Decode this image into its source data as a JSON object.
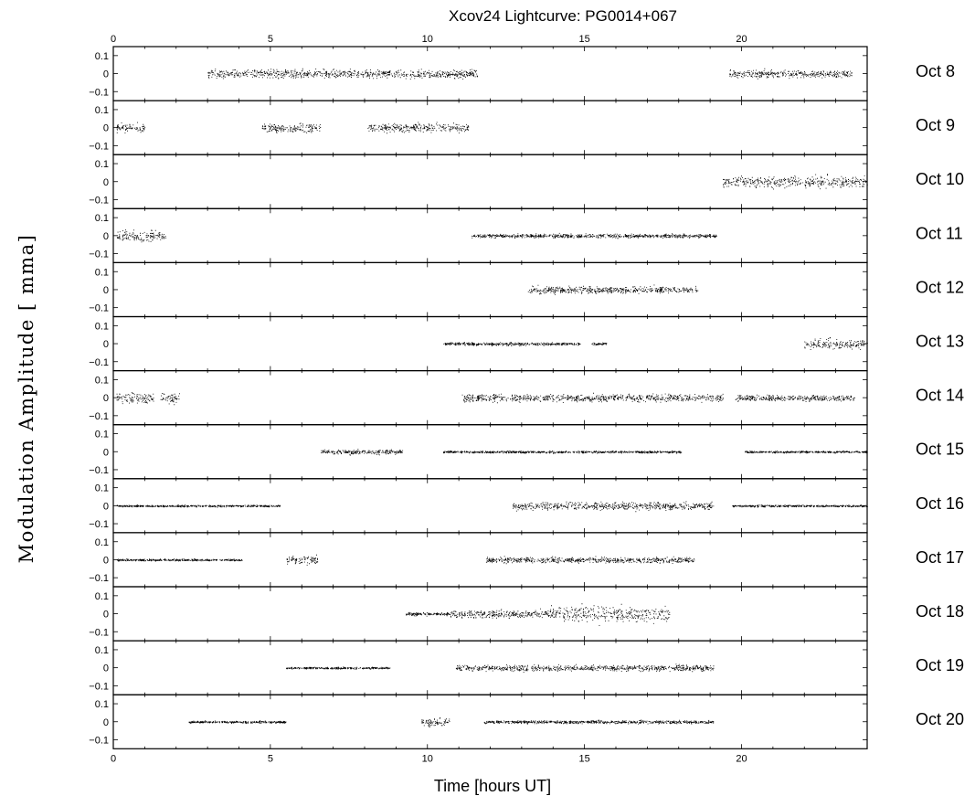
{
  "chart_data": {
    "type": "scatter",
    "title": "Xcov24 Lightcurve:  PG0014+067",
    "xlabel": "Time [hours UT]",
    "ylabel": "Modulation Amplitude [ mma]",
    "xlim": [
      0,
      24
    ],
    "ylim": [
      -0.15,
      0.15
    ],
    "x_ticks": [
      0,
      5,
      10,
      15,
      20
    ],
    "y_ticks": [
      0.1,
      0,
      -0.1
    ],
    "y_tick_labels": [
      "0.1",
      "0",
      "−0.1"
    ],
    "grid": false,
    "panels": [
      {
        "label": "Oct 8",
        "segments": [
          {
            "start": 3.0,
            "end": 11.6,
            "scatter": 0.022
          },
          {
            "start": 19.6,
            "end": 23.5,
            "scatter": 0.02
          }
        ]
      },
      {
        "label": "Oct 9",
        "segments": [
          {
            "start": 0.1,
            "end": 1.0,
            "scatter": 0.022
          },
          {
            "start": 4.7,
            "end": 6.6,
            "scatter": 0.022
          },
          {
            "start": 8.1,
            "end": 11.3,
            "scatter": 0.022
          }
        ]
      },
      {
        "label": "Oct 10",
        "segments": [
          {
            "start": 19.4,
            "end": 24.0,
            "scatter": 0.03
          }
        ]
      },
      {
        "label": "Oct 11",
        "segments": [
          {
            "start": 0.1,
            "end": 1.7,
            "scatter": 0.03
          },
          {
            "start": 11.4,
            "end": 19.2,
            "scatter": 0.01
          }
        ]
      },
      {
        "label": "Oct 12",
        "segments": [
          {
            "start": 13.2,
            "end": 18.6,
            "scatter": 0.018
          }
        ]
      },
      {
        "label": "Oct 13",
        "segments": [
          {
            "start": 10.5,
            "end": 14.9,
            "scatter": 0.008
          },
          {
            "start": 15.2,
            "end": 15.7,
            "scatter": 0.008
          },
          {
            "start": 22.0,
            "end": 24.0,
            "scatter": 0.025
          }
        ]
      },
      {
        "label": "Oct 14",
        "segments": [
          {
            "start": 0.1,
            "end": 1.3,
            "scatter": 0.03
          },
          {
            "start": 1.5,
            "end": 2.1,
            "scatter": 0.03
          },
          {
            "start": 11.1,
            "end": 19.4,
            "scatter": 0.02
          },
          {
            "start": 19.8,
            "end": 23.6,
            "scatter": 0.015
          }
        ]
      },
      {
        "label": "Oct 15",
        "segments": [
          {
            "start": 6.6,
            "end": 9.2,
            "scatter": 0.012
          },
          {
            "start": 10.5,
            "end": 18.1,
            "scatter": 0.006
          },
          {
            "start": 20.1,
            "end": 24.0,
            "scatter": 0.005
          }
        ]
      },
      {
        "label": "Oct 16",
        "segments": [
          {
            "start": 0.1,
            "end": 5.3,
            "scatter": 0.005
          },
          {
            "start": 12.7,
            "end": 19.1,
            "scatter": 0.02
          },
          {
            "start": 19.7,
            "end": 24.0,
            "scatter": 0.005
          }
        ]
      },
      {
        "label": "Oct 17",
        "segments": [
          {
            "start": 0.1,
            "end": 4.1,
            "scatter": 0.005
          },
          {
            "start": 5.5,
            "end": 6.5,
            "scatter": 0.02
          },
          {
            "start": 11.8,
            "end": 18.5,
            "scatter": 0.015
          }
        ]
      },
      {
        "label": "Oct 18",
        "segments": [
          {
            "start": 9.3,
            "end": 10.7,
            "scatter": 0.008
          },
          {
            "start": 10.7,
            "end": 13.9,
            "scatter": 0.02
          },
          {
            "start": 13.9,
            "end": 17.7,
            "scatter": 0.04
          }
        ]
      },
      {
        "label": "Oct 19",
        "segments": [
          {
            "start": 5.5,
            "end": 8.8,
            "scatter": 0.005
          },
          {
            "start": 10.9,
            "end": 13.2,
            "scatter": 0.015
          },
          {
            "start": 13.3,
            "end": 19.1,
            "scatter": 0.015
          }
        ]
      },
      {
        "label": "Oct 20",
        "segments": [
          {
            "start": 2.4,
            "end": 5.5,
            "scatter": 0.006
          },
          {
            "start": 9.8,
            "end": 10.7,
            "scatter": 0.02
          },
          {
            "start": 11.8,
            "end": 19.1,
            "scatter": 0.008
          }
        ]
      }
    ]
  }
}
